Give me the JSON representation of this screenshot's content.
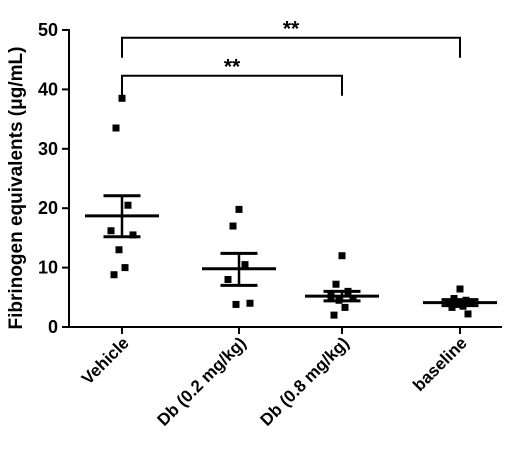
{
  "chart_data": {
    "type": "scatter",
    "title": "",
    "xlabel": "",
    "ylabel": "Fibrinogen equivalents (μg/mL)",
    "ylim": [
      0,
      50
    ],
    "yticks": [
      0,
      10,
      20,
      30,
      40,
      50
    ],
    "grid": false,
    "categories": [
      "Vehicle",
      "Db (0.2 mg/kg)",
      "Db (0.8 mg/kg)",
      "baseline"
    ],
    "groups": [
      {
        "category": "Vehicle",
        "points": [
          38.5,
          33.5,
          20.5,
          16.2,
          15.5,
          13.0,
          10.0,
          8.8
        ],
        "mean": 18.7,
        "sem": [
          15.2,
          22.1
        ]
      },
      {
        "category": "Db (0.2 mg/kg)",
        "points": [
          19.8,
          17.0,
          10.5,
          8.0,
          4.0,
          3.8
        ],
        "mean": 9.8,
        "sem": [
          7.0,
          12.4
        ]
      },
      {
        "category": "Db (0.8 mg/kg)",
        "points": [
          12.0,
          7.2,
          6.0,
          5.2,
          4.8,
          4.5,
          3.3,
          2.0
        ],
        "mean": 5.2,
        "sem": [
          4.4,
          6.0
        ]
      },
      {
        "category": "baseline",
        "points": [
          6.4,
          4.8,
          4.5,
          4.2,
          4.0,
          3.8,
          3.5,
          3.3,
          2.2
        ],
        "mean": 4.1,
        "sem": [
          3.6,
          4.6
        ]
      }
    ],
    "annotations": [
      {
        "from": "Vehicle",
        "to": "baseline",
        "label": "**",
        "y": 48.7
      },
      {
        "from": "Vehicle",
        "to": "Db (0.8 mg/kg)",
        "label": "**",
        "y": 42.3
      }
    ]
  }
}
